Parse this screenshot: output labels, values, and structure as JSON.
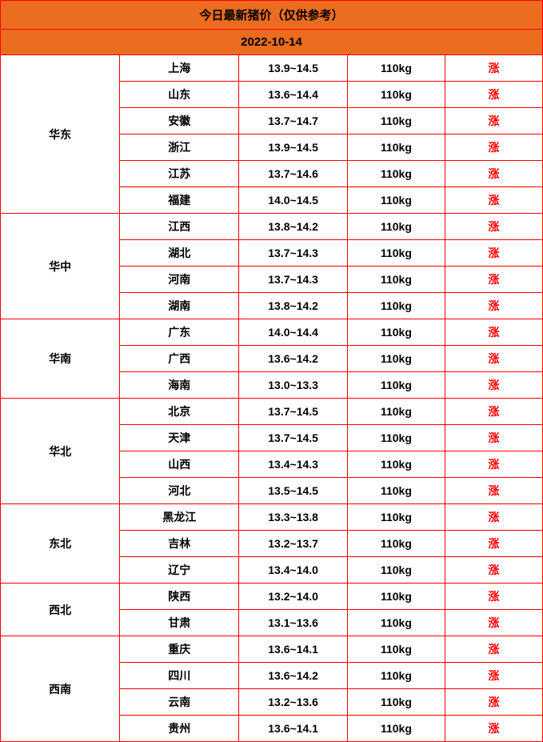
{
  "title": "今日最新猪价（仅供参考）",
  "date": "2022-10-14",
  "colors": {
    "header_bg": "#ec6c1f",
    "border": "#ff0000",
    "trend_text": "#ff0000",
    "text": "#000000",
    "bg": "#ffffff"
  },
  "column_widths_pct": [
    22,
    22,
    20,
    18,
    18
  ],
  "regions": [
    {
      "name": "华东",
      "rows": [
        {
          "province": "上海",
          "price": "13.9~14.5",
          "weight": "110kg",
          "trend": "涨"
        },
        {
          "province": "山东",
          "price": "13.6~14.4",
          "weight": "110kg",
          "trend": "涨"
        },
        {
          "province": "安徽",
          "price": "13.7~14.7",
          "weight": "110kg",
          "trend": "涨"
        },
        {
          "province": "浙江",
          "price": "13.9~14.5",
          "weight": "110kg",
          "trend": "涨"
        },
        {
          "province": "江苏",
          "price": "13.7~14.6",
          "weight": "110kg",
          "trend": "涨"
        },
        {
          "province": "福建",
          "price": "14.0~14.5",
          "weight": "110kg",
          "trend": "涨"
        }
      ]
    },
    {
      "name": "华中",
      "rows": [
        {
          "province": "江西",
          "price": "13.8~14.2",
          "weight": "110kg",
          "trend": "涨"
        },
        {
          "province": "湖北",
          "price": "13.7~14.3",
          "weight": "110kg",
          "trend": "涨"
        },
        {
          "province": "河南",
          "price": "13.7~14.3",
          "weight": "110kg",
          "trend": "涨"
        },
        {
          "province": "湖南",
          "price": "13.8~14.2",
          "weight": "110kg",
          "trend": "涨"
        }
      ]
    },
    {
      "name": "华南",
      "rows": [
        {
          "province": "广东",
          "price": "14.0~14.4",
          "weight": "110kg",
          "trend": "涨"
        },
        {
          "province": "广西",
          "price": "13.6~14.2",
          "weight": "110kg",
          "trend": "涨"
        },
        {
          "province": "海南",
          "price": "13.0~13.3",
          "weight": "110kg",
          "trend": "涨"
        }
      ]
    },
    {
      "name": "华北",
      "rows": [
        {
          "province": "北京",
          "price": "13.7~14.5",
          "weight": "110kg",
          "trend": "涨"
        },
        {
          "province": "天津",
          "price": "13.7~14.5",
          "weight": "110kg",
          "trend": "涨"
        },
        {
          "province": "山西",
          "price": "13.4~14.3",
          "weight": "110kg",
          "trend": "涨"
        },
        {
          "province": "河北",
          "price": "13.5~14.5",
          "weight": "110kg",
          "trend": "涨"
        }
      ]
    },
    {
      "name": "东北",
      "rows": [
        {
          "province": "黑龙江",
          "price": "13.3~13.8",
          "weight": "110kg",
          "trend": "涨"
        },
        {
          "province": "吉林",
          "price": "13.2~13.7",
          "weight": "110kg",
          "trend": "涨"
        },
        {
          "province": "辽宁",
          "price": "13.4~14.0",
          "weight": "110kg",
          "trend": "涨"
        }
      ]
    },
    {
      "name": "西北",
      "rows": [
        {
          "province": "陕西",
          "price": "13.2~14.0",
          "weight": "110kg",
          "trend": "涨"
        },
        {
          "province": "甘肃",
          "price": "13.1~13.6",
          "weight": "110kg",
          "trend": "涨"
        }
      ]
    },
    {
      "name": "西南",
      "rows": [
        {
          "province": "重庆",
          "price": "13.6~14.1",
          "weight": "110kg",
          "trend": "涨"
        },
        {
          "province": "四川",
          "price": "13.6~14.2",
          "weight": "110kg",
          "trend": "涨"
        },
        {
          "province": "云南",
          "price": "13.2~13.6",
          "weight": "110kg",
          "trend": "涨"
        },
        {
          "province": "贵州",
          "price": "13.6~14.1",
          "weight": "110kg",
          "trend": "涨"
        }
      ]
    }
  ]
}
